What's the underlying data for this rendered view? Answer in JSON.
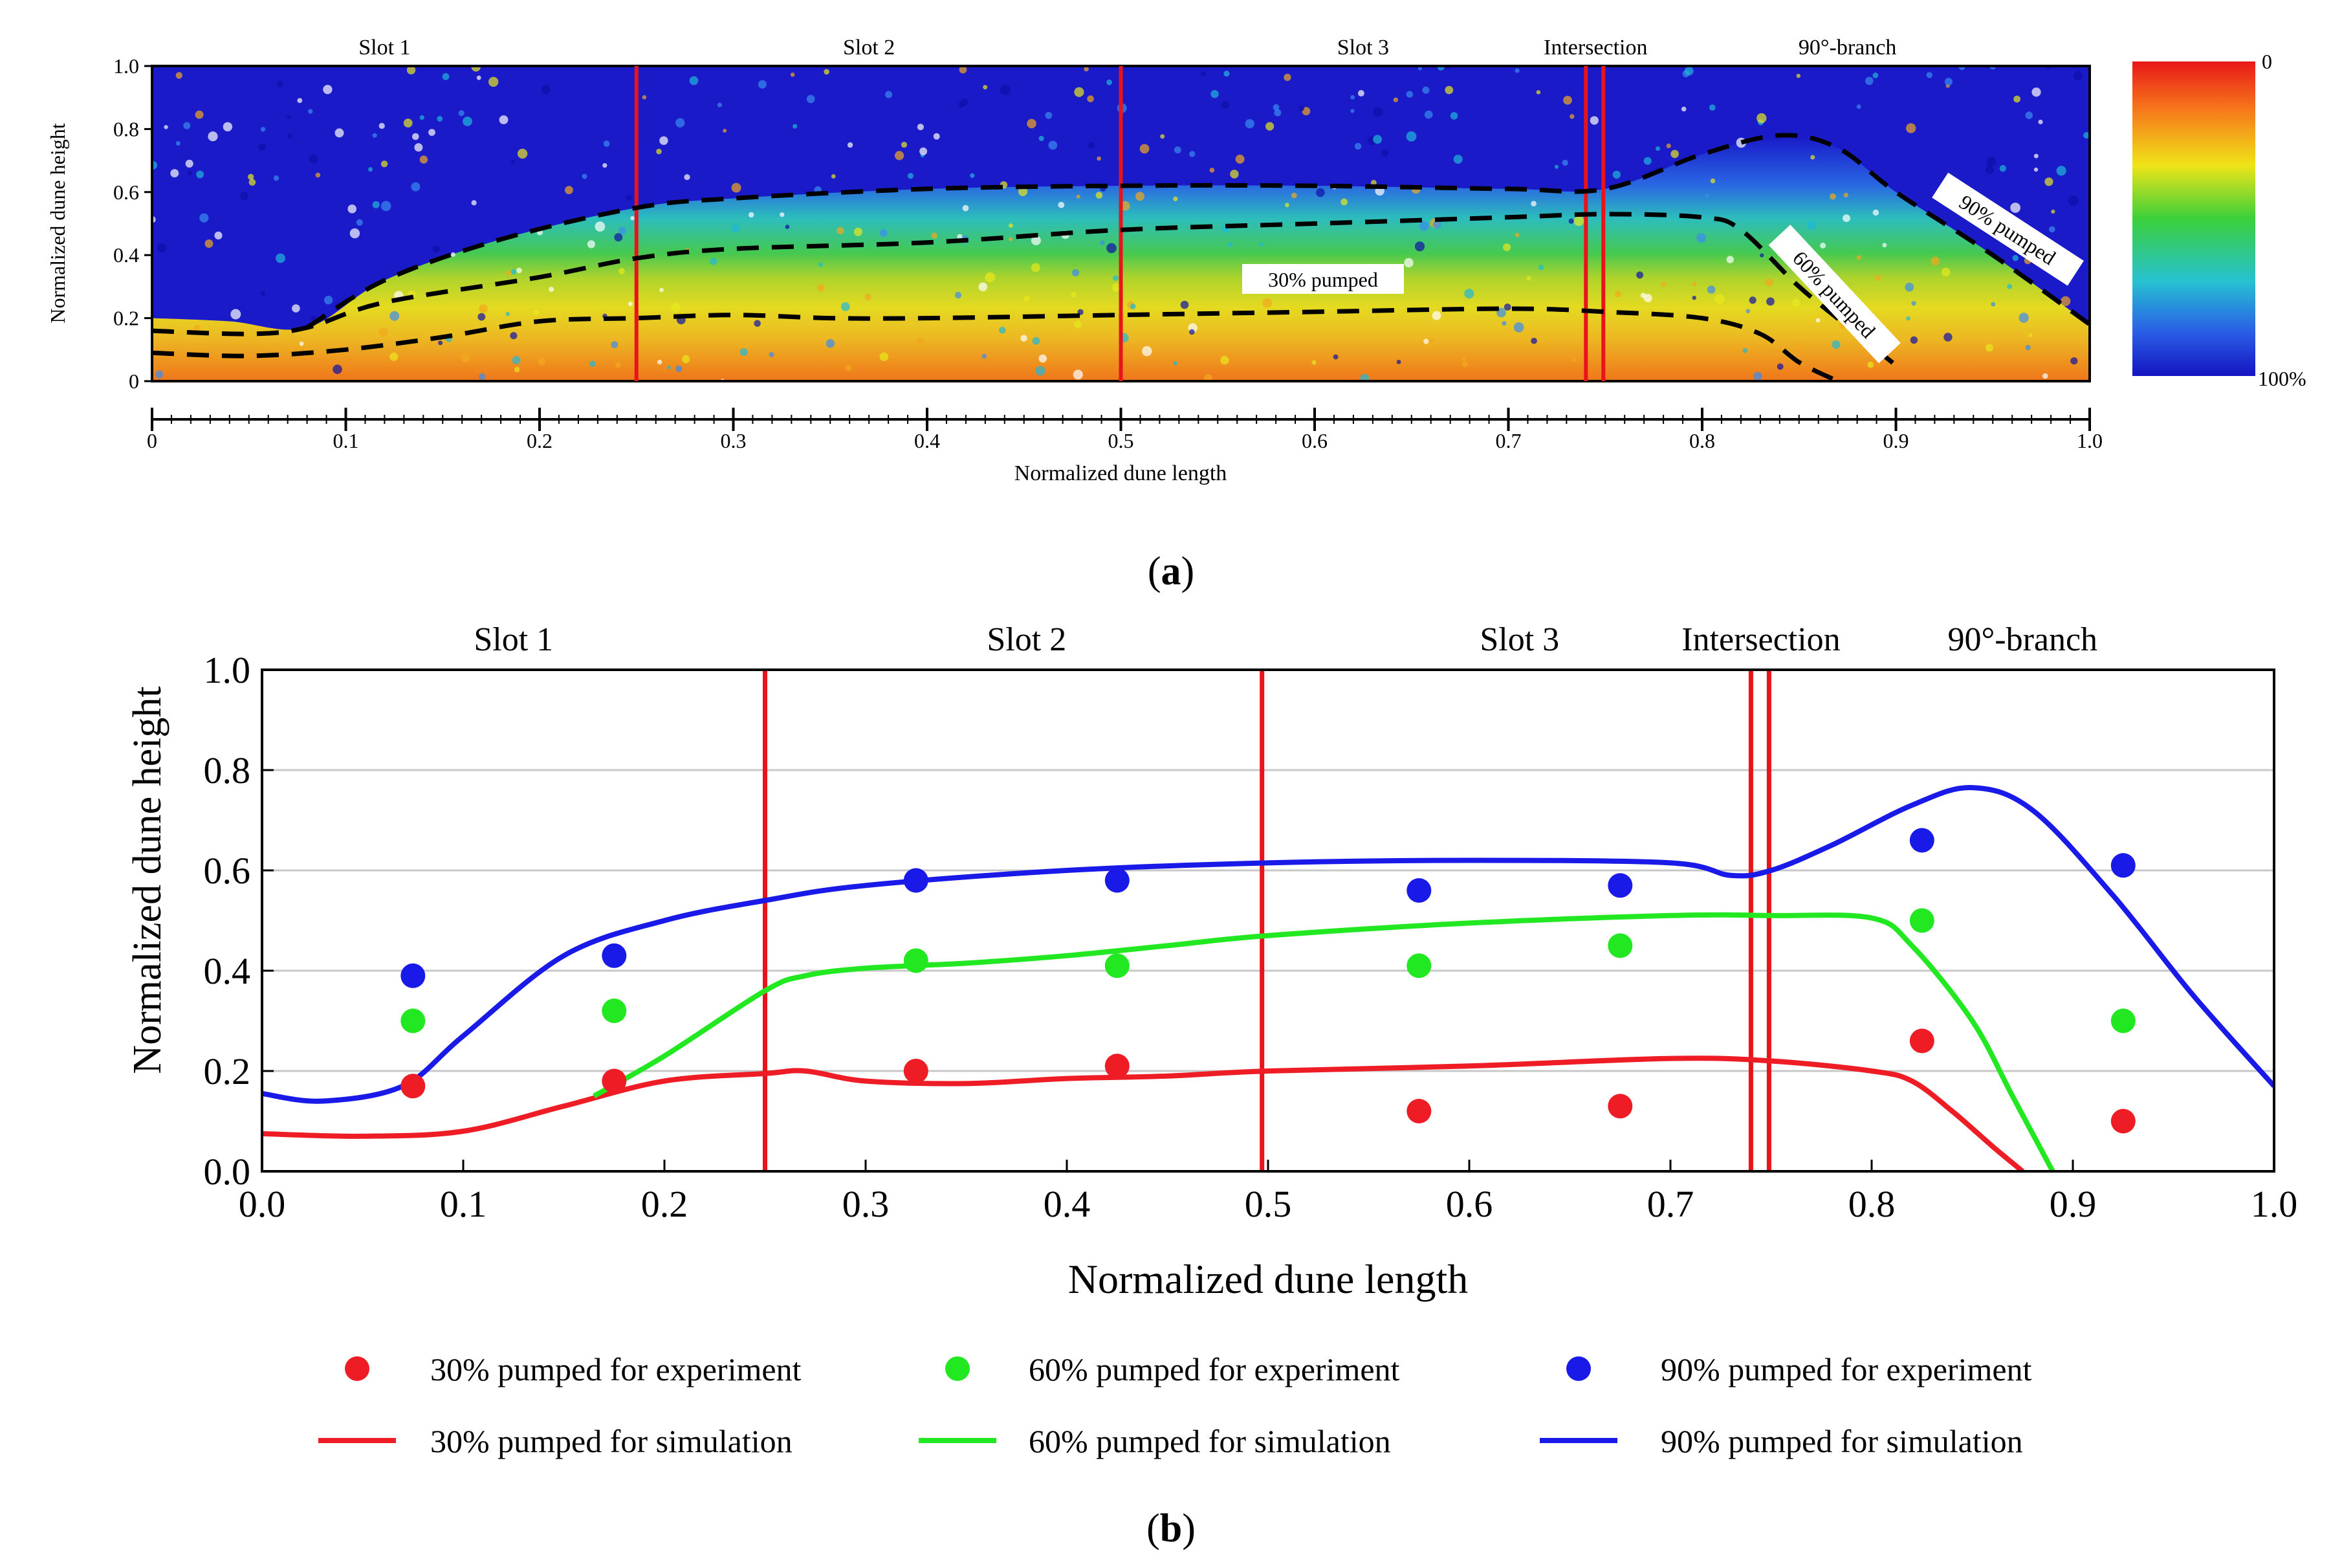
{
  "chart_data": [
    {
      "id": "a",
      "type": "heatmap",
      "panel_label": "a",
      "xlabel": "Normalized dune length",
      "ylabel": "Normalized dune height",
      "xlim": [
        0,
        1.0
      ],
      "ylim": [
        0,
        1.0
      ],
      "xticks": [
        "0",
        "0.1",
        "0.2",
        "0.3",
        "0.4",
        "0.5",
        "0.6",
        "0.7",
        "0.8",
        "0.9",
        "1.0"
      ],
      "yticks": [
        "0",
        "0.2",
        "0.4",
        "0.6",
        "0.8",
        "1.0"
      ],
      "region_labels": [
        {
          "text": "Slot 1",
          "x": 0.12
        },
        {
          "text": "Slot 2",
          "x": 0.37
        },
        {
          "text": "Slot 3",
          "x": 0.625
        },
        {
          "text": "Intersection",
          "x": 0.745
        },
        {
          "text": "90°-branch",
          "x": 0.875
        }
      ],
      "dividers": [
        0.25,
        0.5,
        0.74,
        0.749
      ],
      "colorbar": {
        "top_label": "0",
        "bottom_label": "100%"
      },
      "contours": [
        {
          "name": "30% pumped",
          "label": "30% pumped",
          "points": [
            [
              0,
              0.09
            ],
            [
              0.05,
              0.08
            ],
            [
              0.1,
              0.1
            ],
            [
              0.15,
              0.14
            ],
            [
              0.2,
              0.19
            ],
            [
              0.25,
              0.2
            ],
            [
              0.3,
              0.21
            ],
            [
              0.35,
              0.2
            ],
            [
              0.4,
              0.2
            ],
            [
              0.5,
              0.21
            ],
            [
              0.6,
              0.22
            ],
            [
              0.7,
              0.23
            ],
            [
              0.75,
              0.22
            ],
            [
              0.8,
              0.2
            ],
            [
              0.83,
              0.15
            ],
            [
              0.85,
              0.06
            ],
            [
              0.87,
              0
            ]
          ]
        },
        {
          "name": "60% pumped",
          "label": "60% pumped",
          "points": [
            [
              0,
              0.16
            ],
            [
              0.05,
              0.15
            ],
            [
              0.08,
              0.17
            ],
            [
              0.12,
              0.25
            ],
            [
              0.2,
              0.33
            ],
            [
              0.25,
              0.39
            ],
            [
              0.3,
              0.42
            ],
            [
              0.4,
              0.44
            ],
            [
              0.5,
              0.48
            ],
            [
              0.6,
              0.5
            ],
            [
              0.7,
              0.52
            ],
            [
              0.75,
              0.53
            ],
            [
              0.8,
              0.52
            ],
            [
              0.82,
              0.48
            ],
            [
              0.85,
              0.3
            ],
            [
              0.88,
              0.15
            ],
            [
              0.9,
              0.05
            ]
          ]
        },
        {
          "name": "90% pumped",
          "label": "90% pumped",
          "points": [
            [
              0.08,
              0.17
            ],
            [
              0.12,
              0.32
            ],
            [
              0.18,
              0.45
            ],
            [
              0.25,
              0.55
            ],
            [
              0.3,
              0.58
            ],
            [
              0.4,
              0.61
            ],
            [
              0.5,
              0.62
            ],
            [
              0.6,
              0.62
            ],
            [
              0.7,
              0.61
            ],
            [
              0.75,
              0.61
            ],
            [
              0.8,
              0.72
            ],
            [
              0.84,
              0.78
            ],
            [
              0.87,
              0.74
            ],
            [
              0.9,
              0.6
            ],
            [
              0.95,
              0.4
            ],
            [
              1.0,
              0.18
            ]
          ]
        }
      ]
    },
    {
      "id": "b",
      "type": "line+scatter",
      "panel_label": "b",
      "xlabel": "Normalized dune length",
      "ylabel": "Normalized dune height",
      "xlim": [
        0,
        1.0
      ],
      "ylim": [
        0,
        1.0
      ],
      "xticks": [
        "0.0",
        "0.1",
        "0.2",
        "0.3",
        "0.4",
        "0.5",
        "0.6",
        "0.7",
        "0.8",
        "0.9",
        "1.0"
      ],
      "yticks": [
        "0.0",
        "0.2",
        "0.4",
        "0.6",
        "0.8",
        "1.0"
      ],
      "grid": true,
      "region_labels": [
        {
          "text": "Slot 1",
          "x": 0.125
        },
        {
          "text": "Slot 2",
          "x": 0.38
        },
        {
          "text": "Slot 3",
          "x": 0.625
        },
        {
          "text": "Intersection",
          "x": 0.745
        },
        {
          "text": "90°-branch",
          "x": 0.875
        }
      ],
      "dividers": [
        0.25,
        0.497,
        0.74,
        0.749
      ],
      "experiment_series": [
        {
          "name": "30% pumped for experiment",
          "color": "#ee1c24",
          "x": [
            0.075,
            0.175,
            0.325,
            0.425,
            0.575,
            0.675,
            0.825,
            0.925
          ],
          "y": [
            0.17,
            0.18,
            0.2,
            0.21,
            0.12,
            0.13,
            0.26,
            0.1
          ]
        },
        {
          "name": "60% pumped for experiment",
          "color": "#22e822",
          "x": [
            0.075,
            0.175,
            0.325,
            0.425,
            0.575,
            0.675,
            0.825,
            0.925
          ],
          "y": [
            0.3,
            0.32,
            0.42,
            0.41,
            0.41,
            0.45,
            0.5,
            0.3
          ]
        },
        {
          "name": "90% pumped for experiment",
          "color": "#1a1ae8",
          "x": [
            0.075,
            0.175,
            0.325,
            0.425,
            0.575,
            0.675,
            0.825,
            0.925
          ],
          "y": [
            0.39,
            0.43,
            0.58,
            0.58,
            0.56,
            0.57,
            0.66,
            0.61
          ]
        }
      ],
      "simulation_series": [
        {
          "name": "30% pumped for simulation",
          "color": "#ee1c24",
          "points": [
            [
              0,
              0.075
            ],
            [
              0.05,
              0.07
            ],
            [
              0.1,
              0.08
            ],
            [
              0.15,
              0.13
            ],
            [
              0.2,
              0.18
            ],
            [
              0.25,
              0.195
            ],
            [
              0.27,
              0.2
            ],
            [
              0.3,
              0.18
            ],
            [
              0.35,
              0.175
            ],
            [
              0.4,
              0.185
            ],
            [
              0.45,
              0.19
            ],
            [
              0.5,
              0.2
            ],
            [
              0.6,
              0.21
            ],
            [
              0.7,
              0.225
            ],
            [
              0.75,
              0.22
            ],
            [
              0.8,
              0.2
            ],
            [
              0.82,
              0.18
            ],
            [
              0.84,
              0.12
            ],
            [
              0.86,
              0.05
            ],
            [
              0.875,
              0
            ]
          ]
        },
        {
          "name": "60% pumped for simulation",
          "color": "#22e822",
          "points": [
            [
              0.165,
              0.15
            ],
            [
              0.2,
              0.23
            ],
            [
              0.25,
              0.36
            ],
            [
              0.27,
              0.39
            ],
            [
              0.3,
              0.405
            ],
            [
              0.35,
              0.415
            ],
            [
              0.4,
              0.43
            ],
            [
              0.45,
              0.45
            ],
            [
              0.5,
              0.47
            ],
            [
              0.6,
              0.495
            ],
            [
              0.7,
              0.51
            ],
            [
              0.75,
              0.51
            ],
            [
              0.8,
              0.505
            ],
            [
              0.82,
              0.45
            ],
            [
              0.85,
              0.3
            ],
            [
              0.87,
              0.15
            ],
            [
              0.89,
              0
            ]
          ]
        },
        {
          "name": "90% pumped for simulation",
          "color": "#1a1ae8",
          "points": [
            [
              0,
              0.155
            ],
            [
              0.03,
              0.14
            ],
            [
              0.07,
              0.17
            ],
            [
              0.1,
              0.27
            ],
            [
              0.15,
              0.43
            ],
            [
              0.2,
              0.5
            ],
            [
              0.25,
              0.54
            ],
            [
              0.3,
              0.57
            ],
            [
              0.4,
              0.6
            ],
            [
              0.5,
              0.615
            ],
            [
              0.6,
              0.62
            ],
            [
              0.7,
              0.615
            ],
            [
              0.73,
              0.59
            ],
            [
              0.75,
              0.6
            ],
            [
              0.78,
              0.65
            ],
            [
              0.82,
              0.73
            ],
            [
              0.85,
              0.765
            ],
            [
              0.88,
              0.72
            ],
            [
              0.92,
              0.55
            ],
            [
              0.96,
              0.35
            ],
            [
              1.0,
              0.17
            ]
          ]
        }
      ]
    }
  ]
}
